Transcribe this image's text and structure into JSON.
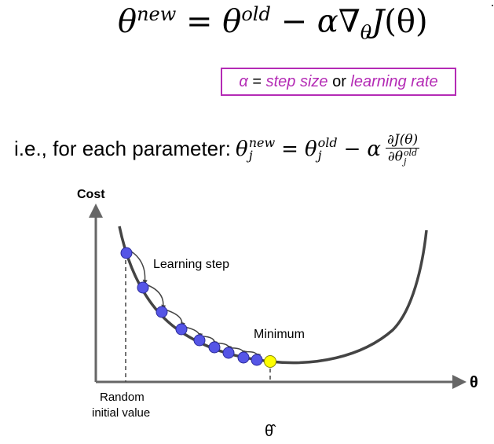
{
  "formula": {
    "theta": "θ",
    "new_sup": "new",
    "old_sup": "old",
    "equals": "=",
    "minus": "−",
    "alpha": "α",
    "nabla": "∇",
    "theta_sub": "θ",
    "j": "J",
    "arg": "(θ)"
  },
  "alpha_box": {
    "alpha": "α",
    "equals": " = ",
    "step_size": "step size",
    "or": " or ",
    "learning_rate": "learning rate",
    "color": "#b42bb5"
  },
  "param_update": {
    "lead": "i.e., for each parameter:",
    "theta": "θ",
    "sub_j": "j",
    "new_sup": "new",
    "old_sup": "old",
    "equals": "=",
    "minus": "−",
    "alpha": "α",
    "frac_num": "∂J(θ)",
    "frac_den_partial": "∂θ",
    "frac_den_sup": "old",
    "frac_den_sub": "j"
  },
  "chart": {
    "y_label": "Cost",
    "x_label": "θ",
    "learning_step_label": "Learning step",
    "minimum_label": "Minimum",
    "random_label_line1": "Random",
    "random_label_line2": "initial value",
    "theta_hat_label": "θ̂",
    "colors": {
      "point": "#5555e6",
      "minimum": "#ffff00",
      "curve": "#444444",
      "axis": "#666666"
    }
  }
}
